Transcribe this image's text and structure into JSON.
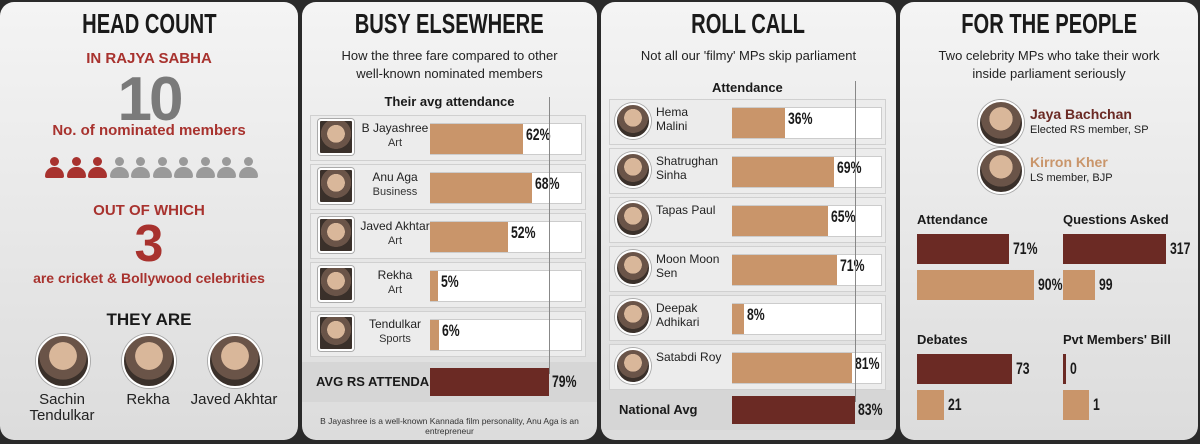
{
  "head_count": {
    "title": "HEAD COUNT",
    "kicker": "IN RAJYA SABHA",
    "total": 10,
    "total_label": "No. of nominated members",
    "sub_kicker": "OUT OF WHICH",
    "celebs": 3,
    "celebs_label": "are cricket & Bollywood celebrities",
    "they_are": "THEY ARE",
    "people": [
      "Sachin Tendulkar",
      "Rekha",
      "Javed Akhtar"
    ]
  },
  "busy_elsewhere": {
    "title": "BUSY ELSEWHERE",
    "subtitle": "How the three fare compared to other well-known nominated members",
    "chart_title": "Their avg attendance",
    "xlim": [
      0,
      100
    ],
    "color": "#c9956a",
    "rows": [
      {
        "name": "B Jayashree",
        "role": "Art",
        "value": 62,
        "value_label": "62%"
      },
      {
        "name": "Anu Aga",
        "role": "Business",
        "value": 68,
        "value_label": "68%"
      },
      {
        "name": "Javed Akhtar",
        "role": "Art",
        "value": 52,
        "value_label": "52%"
      },
      {
        "name": "Rekha",
        "role": "Art",
        "value": 5,
        "value_label": "5%"
      },
      {
        "name": "Tendulkar",
        "role": "Sports",
        "value": 6,
        "value_label": "6%"
      }
    ],
    "average": {
      "label": "AVG RS ATTENDANCE",
      "value": 79,
      "value_label": "79%",
      "color": "#6b2a24"
    },
    "footnote": "B Jayashree is a well-known Kannada film personality, Anu Aga is an entrepreneur"
  },
  "roll_call": {
    "title": "ROLL CALL",
    "subtitle": "Not all our 'filmy' MPs skip parliament",
    "chart_title": "Attendance",
    "xlim": [
      0,
      100
    ],
    "color": "#c9956a",
    "rows": [
      {
        "name": "Hema Malini",
        "value": 36,
        "value_label": "36%"
      },
      {
        "name": "Shatrughan Sinha",
        "value": 69,
        "value_label": "69%"
      },
      {
        "name": "Tapas Paul",
        "value": 65,
        "value_label": "65%"
      },
      {
        "name": "Moon Moon Sen",
        "value": 71,
        "value_label": "71%"
      },
      {
        "name": "Deepak Adhikari",
        "value": 8,
        "value_label": "8%"
      },
      {
        "name": "Satabdi Roy",
        "value": 81,
        "value_label": "81%"
      }
    ],
    "average": {
      "label": "National Avg",
      "value": 83,
      "value_label": "83%",
      "color": "#6b2a24"
    }
  },
  "for_the_people": {
    "title": "FOR THE PEOPLE",
    "subtitle": "Two celebrity MPs who take their work inside parliament seriously",
    "people": [
      {
        "name": "Jaya Bachchan",
        "role": "Elected RS member, SP",
        "color": "#6b2a24"
      },
      {
        "name": "Kirron Kher",
        "role": "LS member, BJP",
        "color": "#c9956a"
      }
    ],
    "charts": [
      {
        "title": "Attendance",
        "xlim": [
          0,
          100
        ],
        "values": [
          71,
          90
        ],
        "value_labels": [
          "71%",
          "90%"
        ]
      },
      {
        "title": "Questions Asked",
        "xlim": [
          0,
          400
        ],
        "values": [
          317,
          99
        ]
      },
      {
        "title": "Debates",
        "xlim": [
          0,
          100
        ],
        "values": [
          73,
          21
        ]
      },
      {
        "title": "Pvt Members' Bill",
        "xlim": [
          0,
          5
        ],
        "values": [
          0,
          1
        ]
      }
    ]
  }
}
